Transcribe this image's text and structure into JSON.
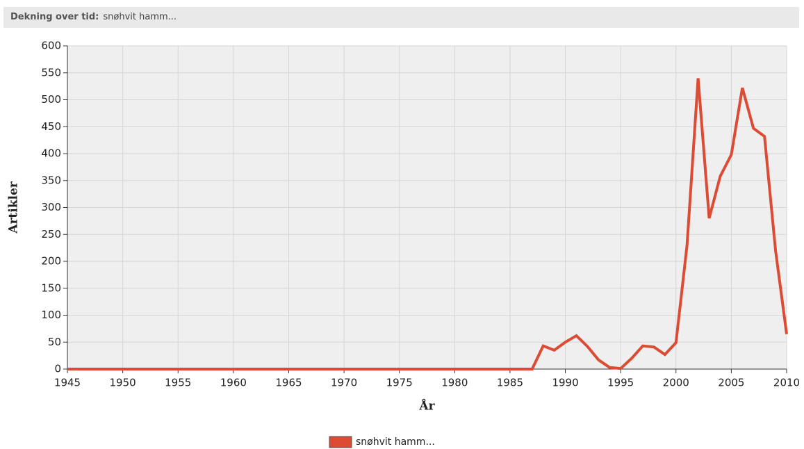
{
  "chart_data": {
    "type": "line",
    "title": "Dekning over tid:",
    "subtitle": "snøhvit hamm...",
    "x_label": "År",
    "y_label": "Artikler",
    "x": [
      1945,
      1946,
      1947,
      1948,
      1949,
      1950,
      1951,
      1952,
      1953,
      1954,
      1955,
      1956,
      1957,
      1958,
      1959,
      1960,
      1961,
      1962,
      1963,
      1964,
      1965,
      1966,
      1967,
      1968,
      1969,
      1970,
      1971,
      1972,
      1973,
      1974,
      1975,
      1976,
      1977,
      1978,
      1979,
      1980,
      1981,
      1982,
      1983,
      1984,
      1985,
      1986,
      1987,
      1988,
      1989,
      1990,
      1991,
      1992,
      1993,
      1994,
      1995,
      1996,
      1997,
      1998,
      1999,
      2000,
      2001,
      2002,
      2003,
      2004,
      2005,
      2006,
      2007,
      2008,
      2009,
      2010
    ],
    "series": [
      {
        "name": "snøhvit hamm...",
        "color": "#dc4b34",
        "values": [
          0,
          0,
          0,
          0,
          0,
          0,
          0,
          0,
          0,
          0,
          0,
          0,
          0,
          0,
          0,
          0,
          0,
          0,
          0,
          0,
          0,
          0,
          0,
          0,
          0,
          0,
          0,
          0,
          0,
          0,
          0,
          0,
          0,
          0,
          0,
          0,
          0,
          0,
          0,
          0,
          0,
          0,
          0,
          43,
          35,
          50,
          62,
          42,
          17,
          3,
          1,
          20,
          43,
          41,
          27,
          49,
          230,
          540,
          280,
          358,
          398,
          522,
          447,
          432,
          220,
          65
        ]
      }
    ],
    "xlim": [
      1945,
      2010
    ],
    "xticks": [
      1945,
      1950,
      1955,
      1960,
      1965,
      1970,
      1975,
      1980,
      1985,
      1990,
      1995,
      2000,
      2005,
      2010
    ],
    "ylim": [
      0,
      600
    ],
    "yticks": [
      0,
      50,
      100,
      150,
      200,
      250,
      300,
      350,
      400,
      450,
      500,
      550,
      600
    ],
    "grid": true
  }
}
